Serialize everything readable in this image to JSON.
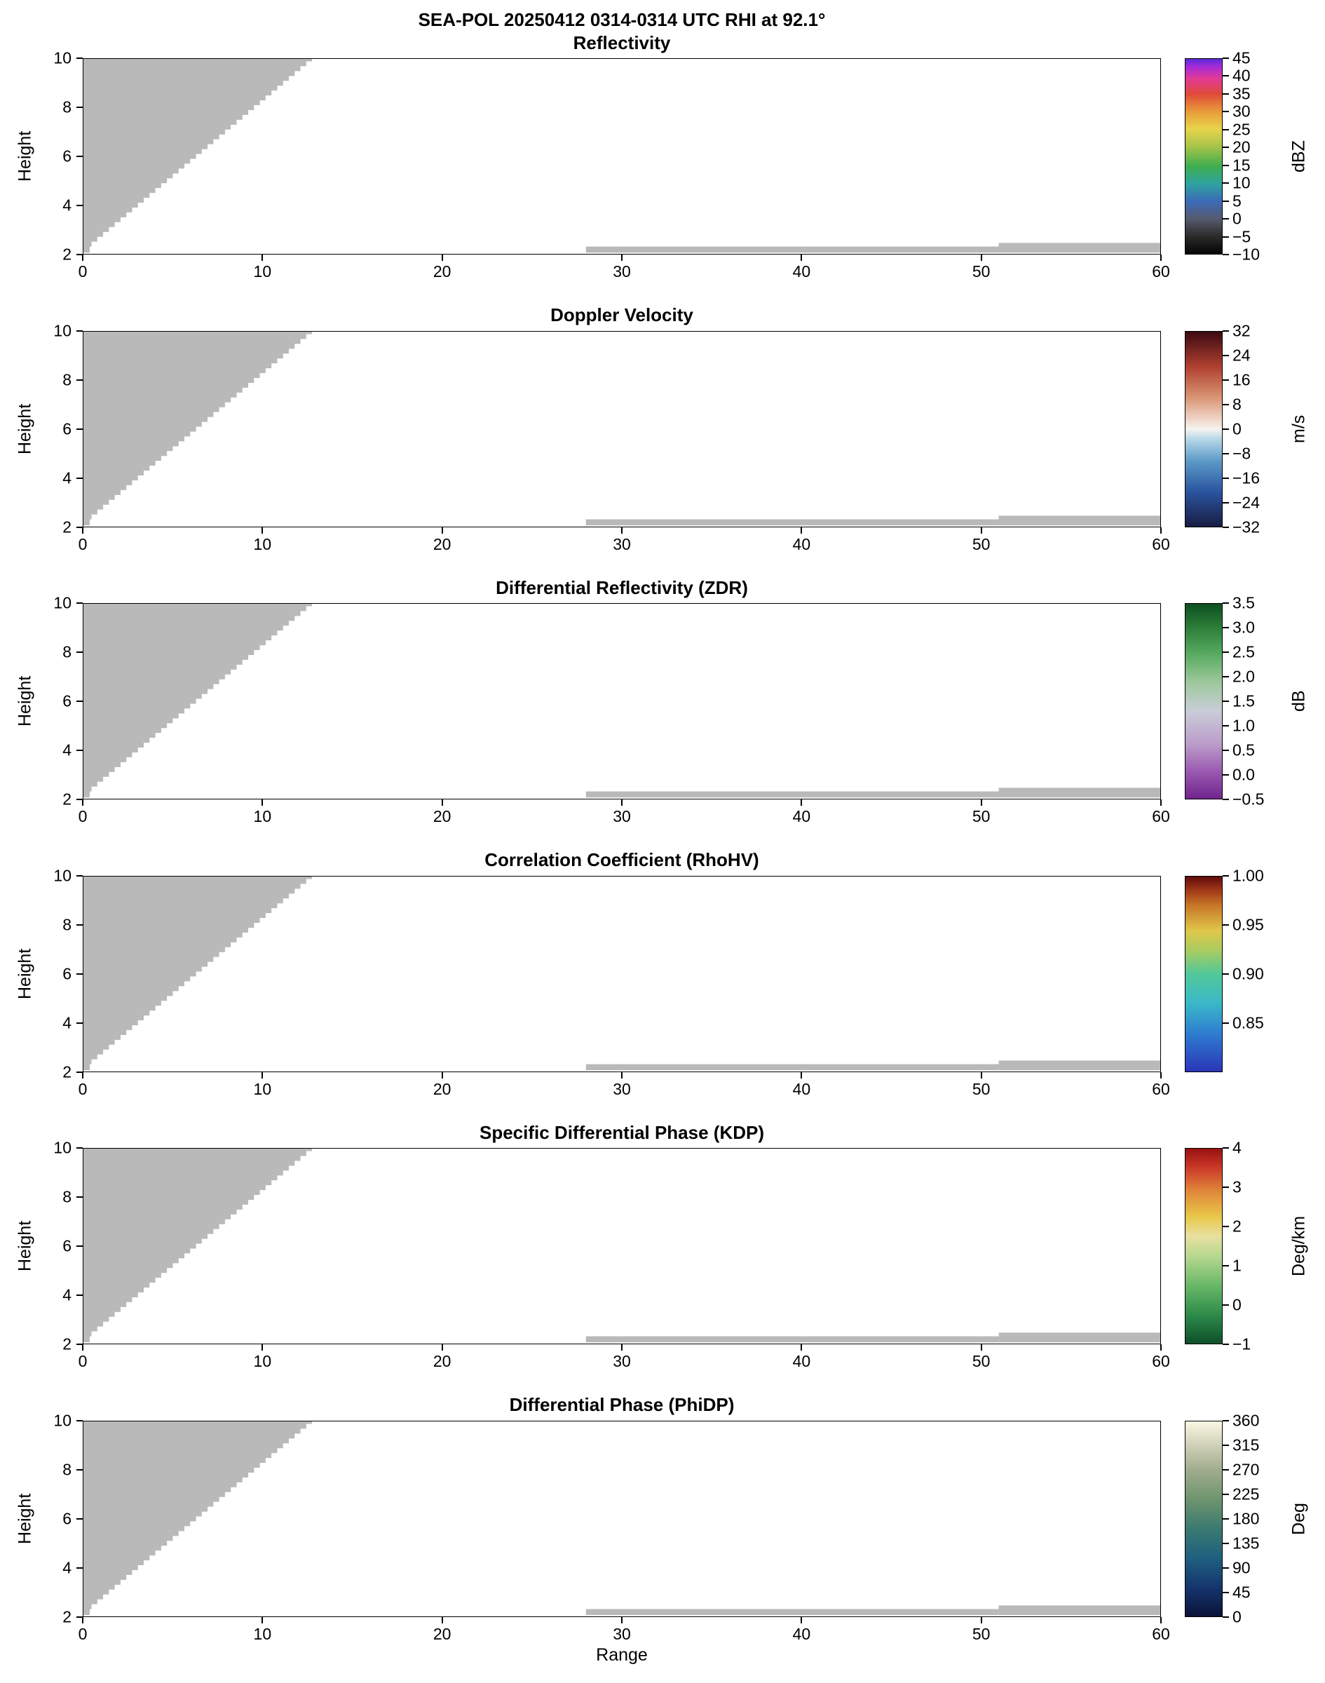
{
  "figure": {
    "suptitle": "SEA-POL 20250412 0314-0314 UTC RHI at 92.1°",
    "xlabel": "Range",
    "ylabel": "Height",
    "background": "#ffffff",
    "mask_color": "#b9b9b9"
  },
  "chart_data": {
    "type": "heatmap",
    "note": "Multi-panel radar RHI display; all six panels contain only gray no-echo mask regions (no colored echo data visible)",
    "x_range": [
      0,
      60
    ],
    "y_range": [
      2,
      10
    ],
    "x_tick_labels": [
      "0",
      "10",
      "20",
      "30",
      "40",
      "50",
      "60"
    ],
    "y_tick_labels": [
      "2",
      "4",
      "6",
      "8",
      "10"
    ],
    "mask": {
      "wedge": {
        "x_bottom": 0.45,
        "y_bottom": 2.3,
        "x_top": 12.9,
        "y_top": 10,
        "step": 0.2,
        "foot": {
          "x0": 0,
          "x1": 0.35,
          "y0": 2.05
        }
      },
      "strips": [
        {
          "x0": 28,
          "x1": 51,
          "y0": 2.05,
          "y1": 2.3
        },
        {
          "x0": 51,
          "x1": 60,
          "y0": 2.05,
          "y1": 2.45
        }
      ]
    },
    "panels": [
      {
        "title": "Reflectivity",
        "unit": "dBZ",
        "cbar_min": -10,
        "cbar_max": 45,
        "cbar_tick_labels": [
          "45",
          "40",
          "35",
          "30",
          "25",
          "20",
          "15",
          "10",
          "5",
          "0",
          "−5",
          "−10"
        ],
        "cbar_stops": [
          [
            0.0,
            "#050505"
          ],
          [
            0.09,
            "#2b2b2b"
          ],
          [
            0.18,
            "#555a6e"
          ],
          [
            0.27,
            "#3b6bb8"
          ],
          [
            0.36,
            "#2fa3a0"
          ],
          [
            0.45,
            "#3fae4d"
          ],
          [
            0.55,
            "#a7c34a"
          ],
          [
            0.64,
            "#e7d54a"
          ],
          [
            0.73,
            "#e89b3a"
          ],
          [
            0.82,
            "#e04a3a"
          ],
          [
            0.9,
            "#e23a96"
          ],
          [
            0.96,
            "#a62bd8"
          ],
          [
            1.0,
            "#5a2bd8"
          ]
        ]
      },
      {
        "title": "Doppler Velocity",
        "unit": "m/s",
        "cbar_min": -32,
        "cbar_max": 32,
        "cbar_tick_labels": [
          "32",
          "24",
          "16",
          "8",
          "0",
          "−8",
          "−16",
          "−24",
          "−32"
        ],
        "cbar_stops": [
          [
            0.0,
            "#181c43"
          ],
          [
            0.18,
            "#2a55a0"
          ],
          [
            0.34,
            "#5e9bc8"
          ],
          [
            0.45,
            "#b8d8e8"
          ],
          [
            0.5,
            "#f5f4f0"
          ],
          [
            0.56,
            "#eed0c0"
          ],
          [
            0.67,
            "#d89070"
          ],
          [
            0.82,
            "#b04030"
          ],
          [
            1.0,
            "#3c0912"
          ]
        ]
      },
      {
        "title": "Differential Reflectivity (ZDR)",
        "unit": "dB",
        "cbar_min": -0.5,
        "cbar_max": 3.5,
        "cbar_tick_labels": [
          "3.5",
          "3.0",
          "2.5",
          "2.0",
          "1.5",
          "1.0",
          "0.5",
          "0.0",
          "−0.5"
        ],
        "cbar_stops": [
          [
            0.0,
            "#70248e"
          ],
          [
            0.14,
            "#9a5ab0"
          ],
          [
            0.28,
            "#bb9cc9"
          ],
          [
            0.45,
            "#c9cdd8"
          ],
          [
            0.6,
            "#9cc89a"
          ],
          [
            0.75,
            "#55a85e"
          ],
          [
            0.88,
            "#2b7d38"
          ],
          [
            1.0,
            "#0e4f20"
          ]
        ]
      },
      {
        "title": "Correlation Coefficient (RhoHV)",
        "unit": "",
        "cbar_min": 0.8,
        "cbar_max": 1.0,
        "cbar_tick_labels": [
          "1.00",
          "0.95",
          "0.90",
          "0.85"
        ],
        "cbar_stops": [
          [
            0.0,
            "#2b35b8"
          ],
          [
            0.2,
            "#2e7fd0"
          ],
          [
            0.35,
            "#3ab8c8"
          ],
          [
            0.5,
            "#52c89a"
          ],
          [
            0.62,
            "#a8cc60"
          ],
          [
            0.72,
            "#e0c84a"
          ],
          [
            0.85,
            "#c87828"
          ],
          [
            0.93,
            "#a03818"
          ],
          [
            1.0,
            "#600c0c"
          ]
        ]
      },
      {
        "title": "Specific Differential Phase (KDP)",
        "unit": "Deg/km",
        "cbar_min": -1,
        "cbar_max": 4,
        "cbar_tick_labels": [
          "4",
          "3",
          "2",
          "1",
          "0",
          "−1"
        ],
        "cbar_stops": [
          [
            0.0,
            "#0d4f2a"
          ],
          [
            0.15,
            "#2e8c4a"
          ],
          [
            0.3,
            "#6ab868"
          ],
          [
            0.45,
            "#b8d890"
          ],
          [
            0.55,
            "#e8e0a0"
          ],
          [
            0.65,
            "#e8c84a"
          ],
          [
            0.78,
            "#e0883a"
          ],
          [
            0.9,
            "#cc3a2a"
          ],
          [
            1.0,
            "#991111"
          ]
        ]
      },
      {
        "title": "Differential Phase (PhiDP)",
        "unit": "Deg",
        "cbar_min": 0,
        "cbar_max": 360,
        "cbar_tick_labels": [
          "360",
          "315",
          "270",
          "225",
          "180",
          "135",
          "90",
          "45",
          "0"
        ],
        "cbar_stops": [
          [
            0.0,
            "#0a1238"
          ],
          [
            0.15,
            "#15356e"
          ],
          [
            0.3,
            "#1f6080"
          ],
          [
            0.45,
            "#3a7a70"
          ],
          [
            0.6,
            "#6e946e"
          ],
          [
            0.75,
            "#a0ac8e"
          ],
          [
            0.87,
            "#ccceb4"
          ],
          [
            1.0,
            "#fbf8e4"
          ]
        ]
      }
    ]
  }
}
